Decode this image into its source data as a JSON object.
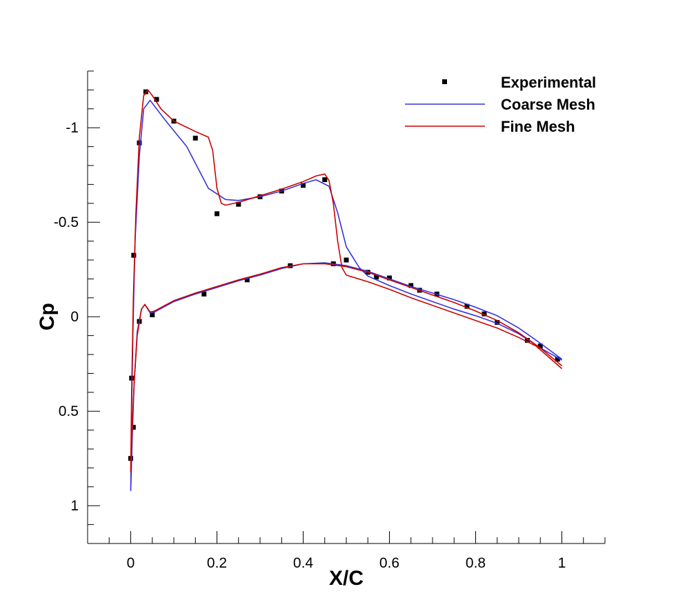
{
  "chart_data": {
    "type": "line",
    "xlabel": "X/C",
    "ylabel": "Cp",
    "xlim": [
      -0.1,
      1.1
    ],
    "ylim": [
      1.2,
      -1.3
    ],
    "y_inverted": true,
    "grid": false,
    "legend_position": "top-right",
    "x_ticks": [
      {
        "value": 0,
        "label": "0"
      },
      {
        "value": 0.2,
        "label": "0.2"
      },
      {
        "value": 0.4,
        "label": "0.4"
      },
      {
        "value": 0.6,
        "label": "0.6"
      },
      {
        "value": 0.8,
        "label": "0.8"
      },
      {
        "value": 1,
        "label": "1"
      }
    ],
    "y_ticks": [
      {
        "value": -1,
        "label": "-1"
      },
      {
        "value": -0.5,
        "label": "-0.5"
      },
      {
        "value": 0,
        "label": "0"
      },
      {
        "value": 0.5,
        "label": "0.5"
      },
      {
        "value": 1,
        "label": "1"
      }
    ],
    "series": [
      {
        "name": "Experimental",
        "kind": "scatter",
        "color": "#000000",
        "marker": "square",
        "points": [
          [
            0,
            0.75
          ],
          [
            0.002,
            0.325
          ],
          [
            0.007,
            -0.325
          ],
          [
            0.02,
            -0.92
          ],
          [
            0.035,
            -1.19
          ],
          [
            0.06,
            -1.15
          ],
          [
            0.1,
            -1.035
          ],
          [
            0.15,
            -0.945
          ],
          [
            0.2,
            -0.545
          ],
          [
            0.25,
            -0.595
          ],
          [
            0.3,
            -0.635
          ],
          [
            0.35,
            -0.665
          ],
          [
            0.4,
            -0.695
          ],
          [
            0.45,
            -0.725
          ],
          [
            0.5,
            -0.3
          ],
          [
            0.55,
            -0.235
          ],
          [
            0.57,
            -0.21
          ],
          [
            0.6,
            -0.205
          ],
          [
            0.65,
            -0.165
          ],
          [
            0.67,
            -0.14
          ],
          [
            0.71,
            -0.12
          ],
          [
            0.78,
            -0.055
          ],
          [
            0.82,
            -0.015
          ],
          [
            0.85,
            0.03
          ],
          [
            0.92,
            0.125
          ],
          [
            0.95,
            0.155
          ],
          [
            0.99,
            0.225
          ],
          [
            0.006,
            0.585
          ],
          [
            0.02,
            0.025
          ],
          [
            0.05,
            -0.01
          ],
          [
            0.17,
            -0.12
          ],
          [
            0.27,
            -0.195
          ],
          [
            0.37,
            -0.27
          ],
          [
            0.47,
            -0.28
          ]
        ]
      },
      {
        "name": "Coarse Mesh",
        "kind": "line",
        "color": "#3333dd",
        "points": [
          [
            1.0,
            0.23
          ],
          [
            0.95,
            0.165
          ],
          [
            0.9,
            0.09
          ],
          [
            0.85,
            0.035
          ],
          [
            0.8,
            -0.005
          ],
          [
            0.75,
            -0.04
          ],
          [
            0.7,
            -0.08
          ],
          [
            0.65,
            -0.12
          ],
          [
            0.6,
            -0.165
          ],
          [
            0.55,
            -0.215
          ],
          [
            0.53,
            -0.26
          ],
          [
            0.5,
            -0.37
          ],
          [
            0.48,
            -0.55
          ],
          [
            0.46,
            -0.69
          ],
          [
            0.43,
            -0.725
          ],
          [
            0.4,
            -0.705
          ],
          [
            0.35,
            -0.665
          ],
          [
            0.3,
            -0.635
          ],
          [
            0.25,
            -0.615
          ],
          [
            0.22,
            -0.62
          ],
          [
            0.18,
            -0.68
          ],
          [
            0.13,
            -0.9
          ],
          [
            0.08,
            -1.04
          ],
          [
            0.06,
            -1.1
          ],
          [
            0.045,
            -1.145
          ],
          [
            0.03,
            -1.1
          ],
          [
            0.02,
            -0.85
          ],
          [
            0.01,
            -0.4
          ],
          [
            0.005,
            0.1
          ],
          [
            0.002,
            0.5
          ],
          [
            0.0,
            0.92
          ],
          [
            0.001,
            0.85
          ],
          [
            0.004,
            0.6
          ],
          [
            0.008,
            0.35
          ],
          [
            0.015,
            0.08
          ],
          [
            0.025,
            -0.04
          ],
          [
            0.033,
            -0.065
          ],
          [
            0.045,
            -0.02
          ],
          [
            0.055,
            -0.025
          ],
          [
            0.1,
            -0.08
          ],
          [
            0.15,
            -0.12
          ],
          [
            0.2,
            -0.155
          ],
          [
            0.25,
            -0.19
          ],
          [
            0.3,
            -0.22
          ],
          [
            0.35,
            -0.255
          ],
          [
            0.4,
            -0.28
          ],
          [
            0.45,
            -0.285
          ],
          [
            0.5,
            -0.27
          ],
          [
            0.55,
            -0.24
          ],
          [
            0.6,
            -0.2
          ],
          [
            0.65,
            -0.16
          ],
          [
            0.7,
            -0.125
          ],
          [
            0.75,
            -0.09
          ],
          [
            0.8,
            -0.05
          ],
          [
            0.85,
            -0.005
          ],
          [
            0.9,
            0.06
          ],
          [
            0.95,
            0.14
          ],
          [
            1.0,
            0.225
          ]
        ]
      },
      {
        "name": "Fine Mesh",
        "kind": "line",
        "color": "#cc0000",
        "points": [
          [
            1.0,
            0.275
          ],
          [
            0.97,
            0.215
          ],
          [
            0.94,
            0.155
          ],
          [
            0.9,
            0.11
          ],
          [
            0.85,
            0.06
          ],
          [
            0.8,
            0.02
          ],
          [
            0.75,
            -0.02
          ],
          [
            0.7,
            -0.06
          ],
          [
            0.65,
            -0.1
          ],
          [
            0.6,
            -0.145
          ],
          [
            0.55,
            -0.185
          ],
          [
            0.5,
            -0.22
          ],
          [
            0.49,
            -0.26
          ],
          [
            0.48,
            -0.4
          ],
          [
            0.47,
            -0.6
          ],
          [
            0.46,
            -0.72
          ],
          [
            0.45,
            -0.755
          ],
          [
            0.43,
            -0.745
          ],
          [
            0.4,
            -0.715
          ],
          [
            0.35,
            -0.675
          ],
          [
            0.3,
            -0.64
          ],
          [
            0.25,
            -0.605
          ],
          [
            0.22,
            -0.59
          ],
          [
            0.21,
            -0.6
          ],
          [
            0.2,
            -0.68
          ],
          [
            0.19,
            -0.88
          ],
          [
            0.18,
            -0.95
          ],
          [
            0.15,
            -0.98
          ],
          [
            0.1,
            -1.035
          ],
          [
            0.07,
            -1.1
          ],
          [
            0.05,
            -1.17
          ],
          [
            0.04,
            -1.2
          ],
          [
            0.03,
            -1.17
          ],
          [
            0.02,
            -0.95
          ],
          [
            0.012,
            -0.55
          ],
          [
            0.006,
            -0.1
          ],
          [
            0.002,
            0.4
          ],
          [
            0.0,
            0.82
          ],
          [
            0.001,
            0.75
          ],
          [
            0.004,
            0.55
          ],
          [
            0.008,
            0.35
          ],
          [
            0.015,
            0.1
          ],
          [
            0.025,
            -0.04
          ],
          [
            0.033,
            -0.065
          ],
          [
            0.045,
            -0.025
          ],
          [
            0.055,
            -0.03
          ],
          [
            0.1,
            -0.085
          ],
          [
            0.15,
            -0.125
          ],
          [
            0.2,
            -0.16
          ],
          [
            0.25,
            -0.195
          ],
          [
            0.3,
            -0.225
          ],
          [
            0.35,
            -0.26
          ],
          [
            0.4,
            -0.28
          ],
          [
            0.45,
            -0.28
          ],
          [
            0.5,
            -0.265
          ],
          [
            0.55,
            -0.235
          ],
          [
            0.6,
            -0.195
          ],
          [
            0.65,
            -0.155
          ],
          [
            0.7,
            -0.115
          ],
          [
            0.75,
            -0.075
          ],
          [
            0.8,
            -0.03
          ],
          [
            0.85,
            0.02
          ],
          [
            0.9,
            0.085
          ],
          [
            0.95,
            0.165
          ],
          [
            1.0,
            0.26
          ]
        ]
      }
    ]
  }
}
